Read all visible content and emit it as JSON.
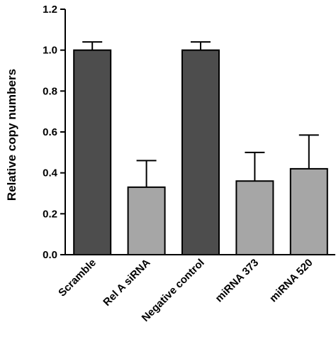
{
  "chart_data": {
    "type": "bar",
    "title": "",
    "xlabel": "",
    "ylabel": "Relative copy numbers",
    "ylim": [
      0,
      1.2
    ],
    "yticks": [
      0.0,
      0.2,
      0.4,
      0.6,
      0.8,
      1.0,
      1.2
    ],
    "ytick_labels": [
      "0.0",
      "0.2",
      "0.4",
      "0.6",
      "0.8",
      "1.0",
      "1.2"
    ],
    "categories": [
      "Scramble",
      "Rel A siRNA",
      "Negative control",
      "miRNA 373",
      "miRNA 520"
    ],
    "values": [
      1.0,
      0.33,
      1.0,
      0.36,
      0.42
    ],
    "error_upper": [
      0.04,
      0.13,
      0.04,
      0.14,
      0.165
    ],
    "bar_colors": [
      "#4d4d4d",
      "#a6a6a6",
      "#4d4d4d",
      "#a6a6a6",
      "#a6a6a6"
    ],
    "grid": false,
    "legend": "none"
  }
}
